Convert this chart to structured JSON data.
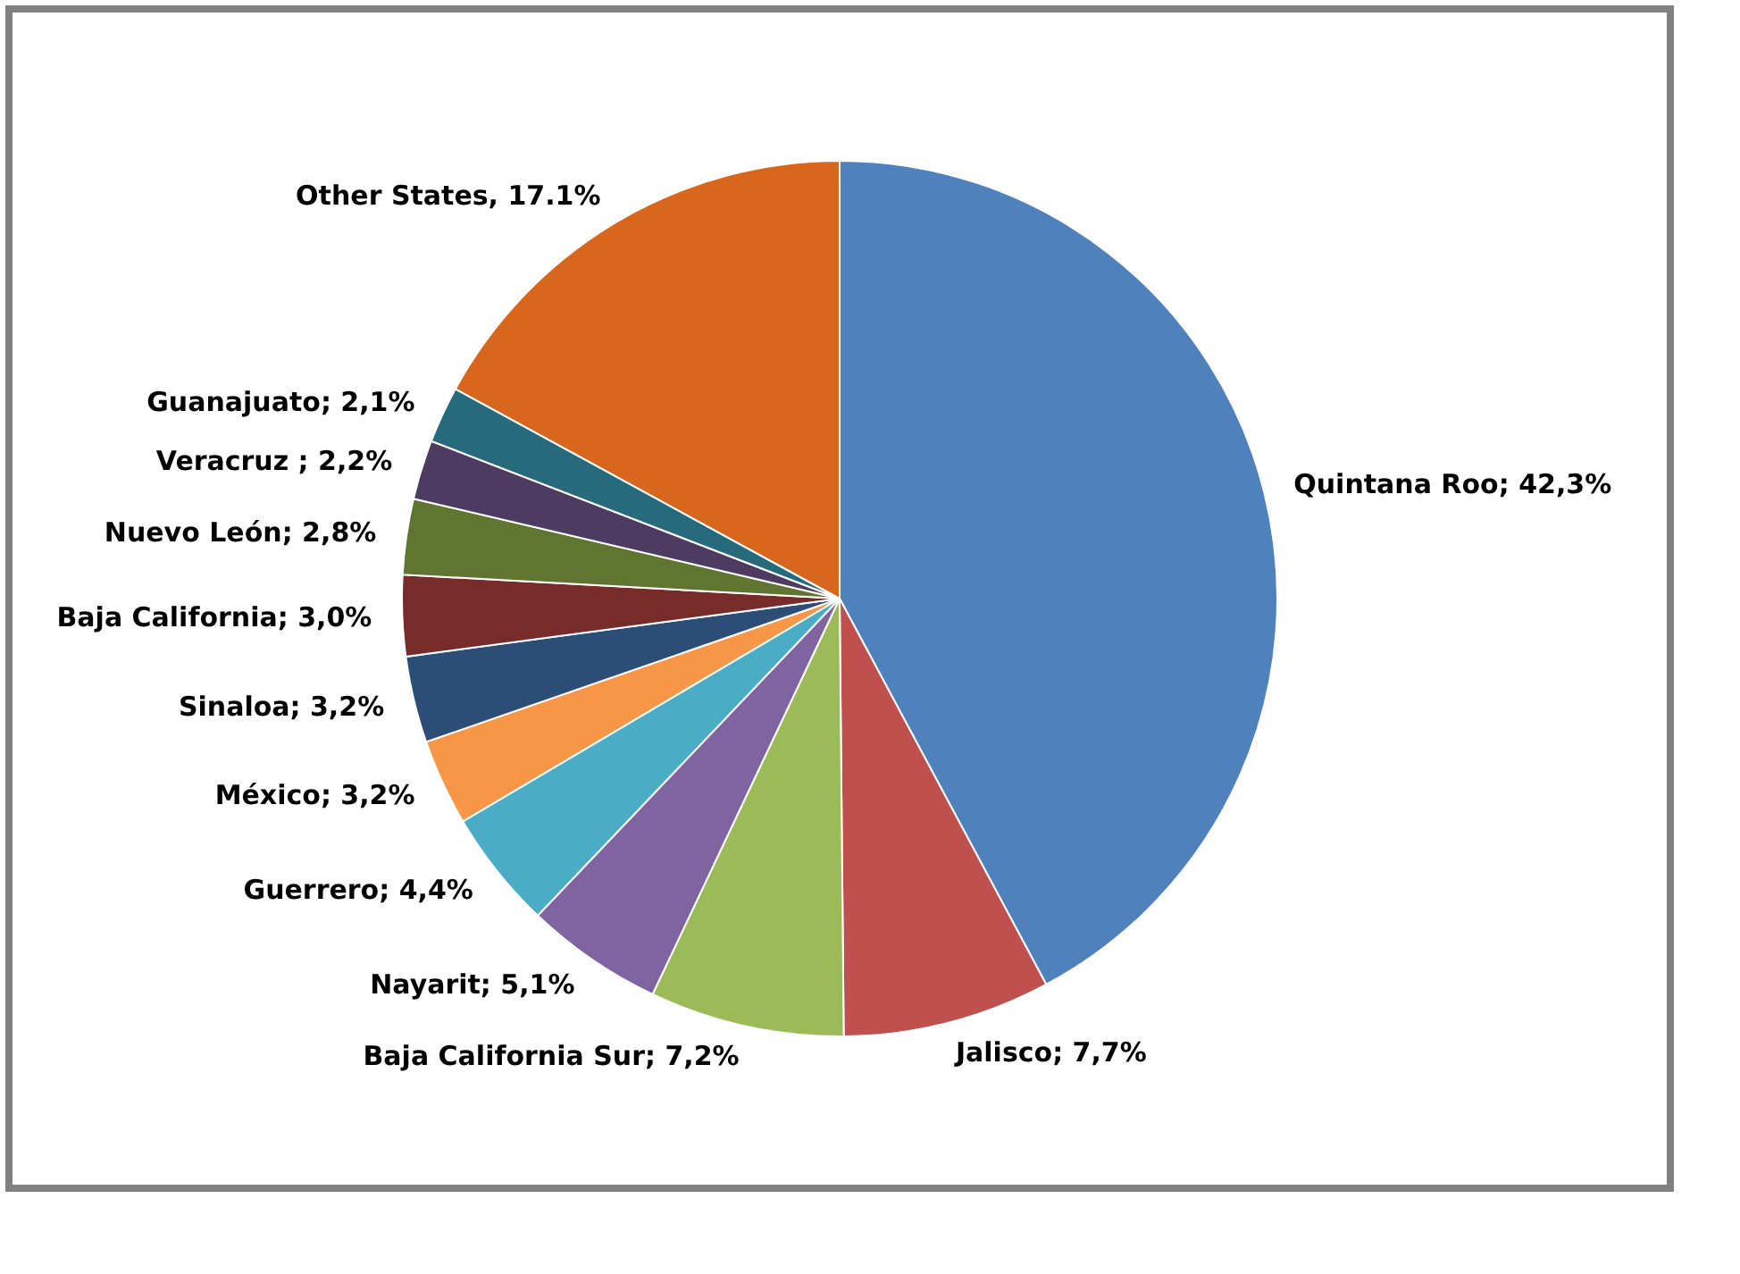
{
  "chart_data": {
    "type": "pie",
    "categories": [
      "Quintana Roo; 42,3%",
      "Jalisco; 7,7%",
      "Baja California Sur; 7,2%",
      "Nayarit; 5,1%",
      "Guerrero; 4,4%",
      "México; 3,2%",
      "Sinaloa; 3,2%",
      "Baja California; 3,0%",
      "Nuevo León; 2,8%",
      "Veracruz ; 2,2%",
      "Guanajuato; 2,1%",
      "Other States, 17.1%"
    ],
    "values": [
      42.3,
      7.7,
      7.2,
      5.1,
      4.4,
      3.2,
      3.2,
      3.0,
      2.8,
      2.2,
      2.1,
      17.1
    ],
    "colors": [
      "#4f81bd",
      "#c0504d",
      "#9bbb59",
      "#8064a2",
      "#4bacc6",
      "#f79646",
      "#2c4d75",
      "#772c2a",
      "#5f7530",
      "#4d3b62",
      "#276a7c",
      "#d8661c"
    ],
    "legend": false
  }
}
